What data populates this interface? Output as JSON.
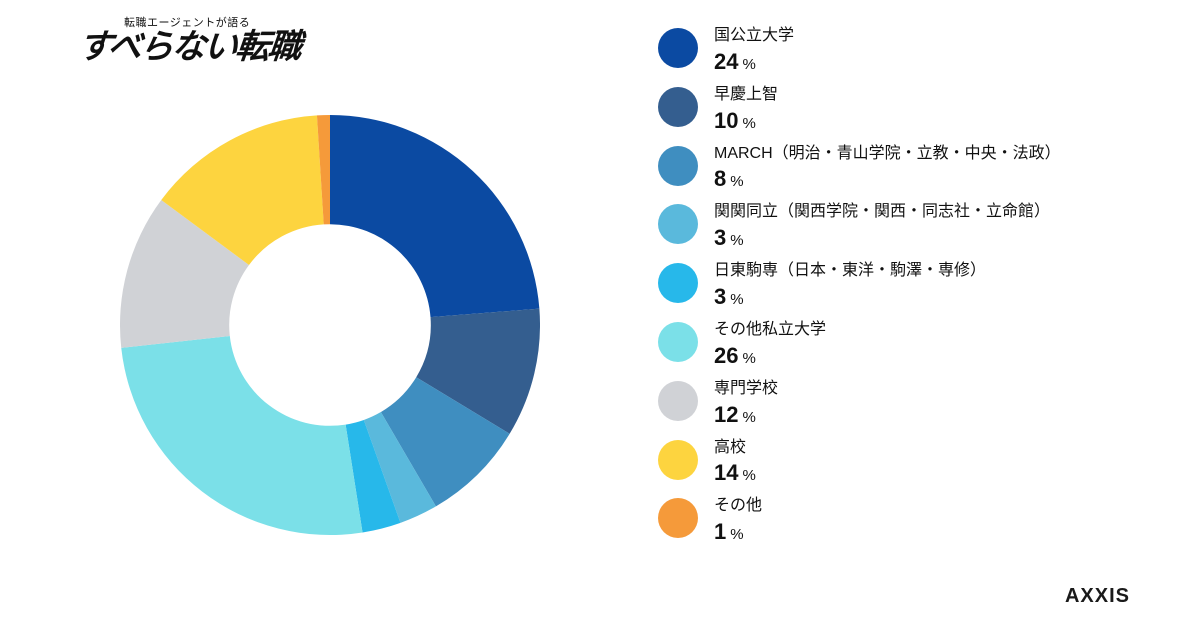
{
  "logo": {
    "sub": "転職エージェントが語る",
    "main": "すべらない転職"
  },
  "footer_brand": "AXXIS",
  "donut": {
    "type": "donut",
    "inner_radius_pct": 48,
    "outer_radius_pct": 100,
    "start_angle_deg": 0,
    "direction": "clockwise",
    "background_color": "#ffffff",
    "slices": [
      {
        "label": "国公立大学",
        "value": 24,
        "color": "#0b4aa2"
      },
      {
        "label": "早慶上智",
        "value": 10,
        "color": "#345e8f"
      },
      {
        "label": "MARCH（明治・青山学院・立教・中央・法政）",
        "value": 8,
        "color": "#3f8ec0"
      },
      {
        "label": "関関同立（関西学院・関西・同志社・立命館）",
        "value": 3,
        "color": "#5ab9dc"
      },
      {
        "label": "日東駒専（日本・東洋・駒澤・専修）",
        "value": 3,
        "color": "#27b8ea"
      },
      {
        "label": "その他私立大学",
        "value": 26,
        "color": "#7be0e8"
      },
      {
        "label": "専門学校",
        "value": 12,
        "color": "#d0d2d6"
      },
      {
        "label": "高校",
        "value": 14,
        "color": "#fdd43f"
      },
      {
        "label": "その他",
        "value": 1,
        "color": "#f59a3a"
      }
    ],
    "value_suffix": "%",
    "label_fontsize": 16,
    "value_fontsize": 22
  }
}
